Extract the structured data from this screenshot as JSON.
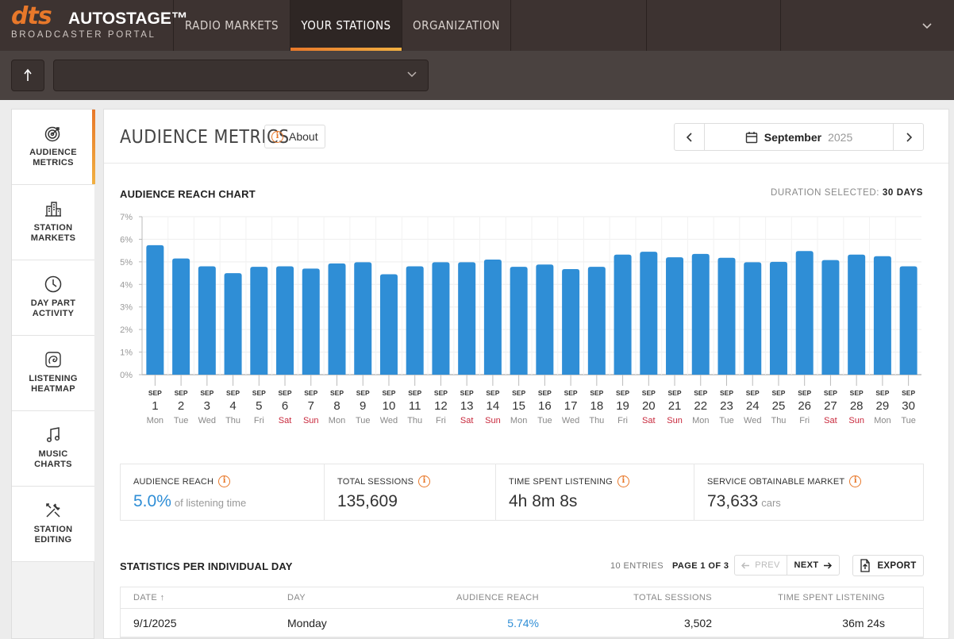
{
  "brand": {
    "logo_mark": "dts",
    "name": "AUTOSTAGE™",
    "tagline": "BROADCASTER PORTAL"
  },
  "topnav": {
    "tabs": [
      {
        "label": "RADIO MARKETS",
        "active": false
      },
      {
        "label": "YOUR STATIONS",
        "active": true
      },
      {
        "label": "ORGANIZATION",
        "active": false
      }
    ],
    "menu_icon": "chevron-down-icon"
  },
  "subbar": {
    "up_icon": "arrow-up-icon",
    "station_select_value": ""
  },
  "sidebar": {
    "items": [
      {
        "label": "AUDIENCE METRICS",
        "icon": "target-icon",
        "active": true
      },
      {
        "label": "STATION MARKETS",
        "icon": "city-icon",
        "active": false
      },
      {
        "label": "DAY PART ACTIVITY",
        "icon": "clock-icon",
        "active": false
      },
      {
        "label": "LISTENING HEATMAP",
        "icon": "heatmap-icon",
        "active": false
      },
      {
        "label": "MUSIC CHARTS",
        "icon": "music-note-icon",
        "active": false
      },
      {
        "label": "STATION EDITING",
        "icon": "tools-icon",
        "active": false
      }
    ]
  },
  "header": {
    "title": "AUDIENCE METRICS",
    "about_label": "About",
    "month": "September",
    "year": "2025"
  },
  "chart_section": {
    "title": "AUDIENCE REACH CHART",
    "duration_label": "DURATION SELECTED:",
    "duration_value": "30 DAYS"
  },
  "chart_data": {
    "type": "bar",
    "title": "AUDIENCE REACH CHART",
    "ylim": [
      0,
      7
    ],
    "yticks": [
      "0%",
      "1%",
      "2%",
      "3%",
      "4%",
      "5%",
      "6%",
      "7%"
    ],
    "grid": true,
    "month_abbr": "SEP",
    "categories": [
      "1",
      "2",
      "3",
      "4",
      "5",
      "6",
      "7",
      "8",
      "9",
      "10",
      "11",
      "12",
      "13",
      "14",
      "15",
      "16",
      "17",
      "18",
      "19",
      "20",
      "21",
      "22",
      "23",
      "24",
      "25",
      "26",
      "27",
      "28",
      "29",
      "30"
    ],
    "weekdays": [
      "Mon",
      "Tue",
      "Wed",
      "Thu",
      "Fri",
      "Sat",
      "Sun",
      "Mon",
      "Tue",
      "Wed",
      "Thu",
      "Fri",
      "Sat",
      "Sun",
      "Mon",
      "Tue",
      "Wed",
      "Thu",
      "Fri",
      "Sat",
      "Sun",
      "Mon",
      "Tue",
      "Wed",
      "Thu",
      "Fri",
      "Sat",
      "Sun",
      "Mon",
      "Tue"
    ],
    "values": [
      5.74,
      5.15,
      4.8,
      4.5,
      4.78,
      4.8,
      4.7,
      4.93,
      4.98,
      4.45,
      4.8,
      4.98,
      4.98,
      5.1,
      4.78,
      4.88,
      4.68,
      4.78,
      5.32,
      5.45,
      5.2,
      5.35,
      5.18,
      4.98,
      5.0,
      5.48,
      5.08,
      5.32,
      5.25,
      4.8
    ],
    "bar_color": "#2f8ed6",
    "weekend_color": "#c8283c"
  },
  "kpis": [
    {
      "label": "AUDIENCE REACH",
      "value": "5.0%",
      "unit": "of listening time"
    },
    {
      "label": "TOTAL SESSIONS",
      "value": "135,609",
      "unit": ""
    },
    {
      "label": "TIME SPENT LISTENING",
      "value": "4h 8m 8s",
      "unit": ""
    },
    {
      "label": "SERVICE OBTAINABLE MARKET",
      "value": "73,633",
      "unit": "cars"
    }
  ],
  "stats": {
    "title": "STATISTICS PER INDIVIDUAL DAY",
    "entries": "10 ENTRIES",
    "page": "PAGE 1 OF 3",
    "prev": "PREV",
    "next": "NEXT",
    "export": "EXPORT",
    "columns": [
      "DATE",
      "DAY",
      "AUDIENCE REACH",
      "TOTAL SESSIONS",
      "TIME SPENT LISTENING"
    ],
    "rows": [
      {
        "date": "9/1/2025",
        "day": "Monday",
        "reach": "5.74%",
        "sessions": "3,502",
        "tsl": "36m 24s"
      }
    ]
  }
}
